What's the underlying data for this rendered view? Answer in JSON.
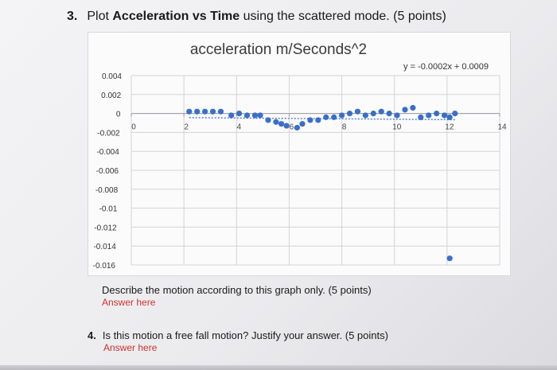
{
  "question3": {
    "number": "3.",
    "lead": "Plot",
    "bold_part": "Acceleration vs Time",
    "rest": "using the scattered mode. (5 points)"
  },
  "describe_text": "Describe the motion according to this graph only. (5 points)",
  "answer_placeholder_1": "Answer here",
  "question4": {
    "number": "4.",
    "text": "Is this motion a free fall motion? Justify your answer. (5 points)"
  },
  "answer_placeholder_2": "Answer here",
  "chart_data": {
    "type": "scatter",
    "title": "acceleration m/Seconds^2",
    "xlim": [
      0,
      14
    ],
    "ylim": [
      -0.016,
      0.004
    ],
    "x_ticks": [
      "0",
      "2",
      "4",
      "6",
      "8",
      "10",
      "12",
      "14"
    ],
    "y_ticks": [
      "0.004",
      "0.002",
      "0",
      "-0.002",
      "-0.004",
      "-0.006",
      "-0.008",
      "-0.01",
      "-0.012",
      "-0.014",
      "-0.016"
    ],
    "grid": true,
    "trendline": {
      "type": "linear",
      "equation": "y = -0.0002x + 0.0009"
    },
    "series": [
      {
        "color": "#3a6fc9",
        "points": [
          [
            2.2,
            0.0002
          ],
          [
            2.5,
            0.0002
          ],
          [
            2.8,
            0.0002
          ],
          [
            3.1,
            0.0002
          ],
          [
            3.4,
            0.0002
          ],
          [
            3.8,
            -0.0002
          ],
          [
            4.1,
            0.0
          ],
          [
            4.4,
            -0.0002
          ],
          [
            4.7,
            -0.0002
          ],
          [
            4.9,
            -0.0002
          ],
          [
            5.2,
            -0.0007
          ],
          [
            5.5,
            -0.0009
          ],
          [
            5.7,
            -0.0011
          ],
          [
            5.9,
            -0.0013
          ],
          [
            6.3,
            -0.0015
          ],
          [
            6.5,
            -0.0011
          ],
          [
            6.8,
            -0.0007
          ],
          [
            7.1,
            -0.0007
          ],
          [
            7.4,
            -0.0004
          ],
          [
            7.7,
            -0.0004
          ],
          [
            8.0,
            -0.0002
          ],
          [
            8.3,
            0.0
          ],
          [
            8.6,
            0.0002
          ],
          [
            8.9,
            -0.0002
          ],
          [
            9.2,
            0.0
          ],
          [
            9.5,
            0.0002
          ],
          [
            9.8,
            0.0
          ],
          [
            10.1,
            -0.0002
          ],
          [
            10.4,
            0.0004
          ],
          [
            10.7,
            0.0006
          ],
          [
            11.0,
            -0.0004
          ],
          [
            11.3,
            -0.0002
          ],
          [
            11.6,
            0.0
          ],
          [
            11.9,
            -0.0002
          ],
          [
            12.1,
            -0.0004
          ],
          [
            12.3,
            0.0
          ],
          [
            12.1,
            -0.0153
          ]
        ]
      }
    ]
  }
}
